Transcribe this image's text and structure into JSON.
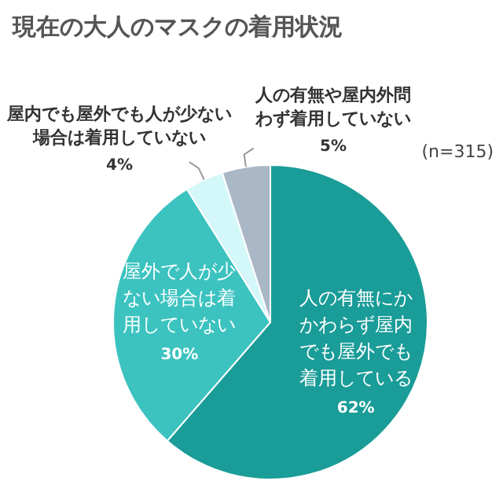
{
  "chart_data": {
    "type": "pie",
    "title": "現在の大人のマスクの着用状況",
    "categories": [
      "人の有無にかかわらず屋内でも屋外でも着用している",
      "屋外で人が少ない場合は着用していない",
      "屋内でも屋外でも人が少ない場合は着用していない",
      "人の有無や屋内外問わず着用していない"
    ],
    "values": [
      62,
      30,
      4,
      5
    ],
    "colors": [
      "#1a9c98",
      "#3cc3c0",
      "#d4f7f9",
      "#a9b7c6"
    ],
    "annotations": [
      "(n=315)"
    ],
    "value_labels": [
      "62%",
      "30%",
      "4%",
      "5%"
    ]
  }
}
